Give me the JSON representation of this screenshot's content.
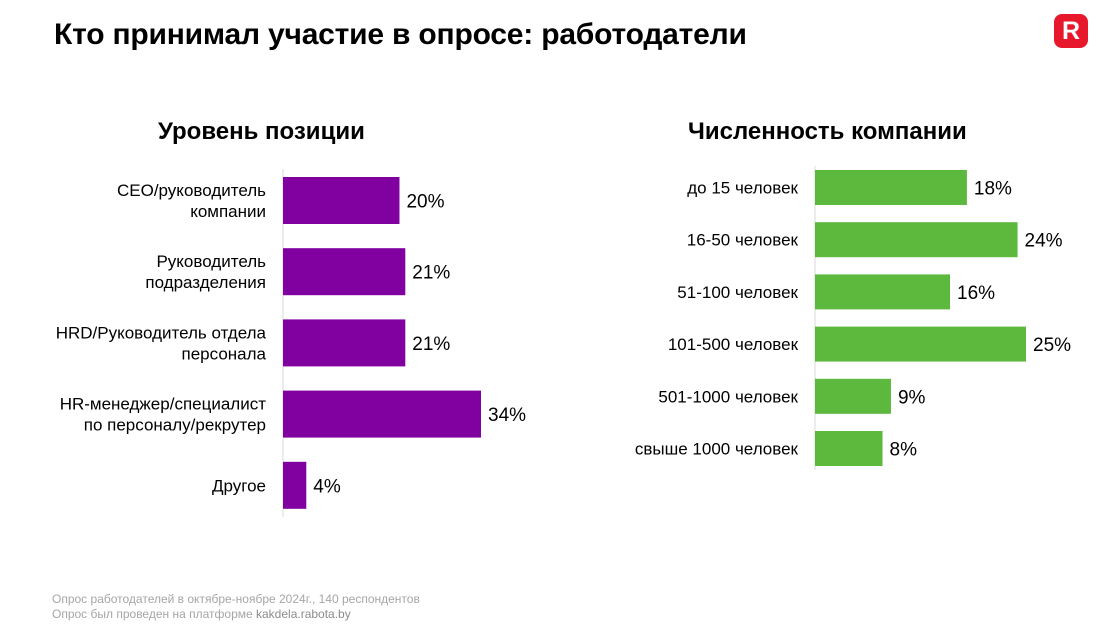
{
  "page": {
    "title": "Кто принимал участие в опросе: работодатели",
    "logo_letter": "R",
    "logo_color": "#e8182c"
  },
  "footer": {
    "line1": "Опрос работодателей в октябре-ноябре 2024г., 140 респондентов",
    "line2_prefix": "Опрос был проведен на платформе ",
    "line2_platform": "kakdela.rabota.by"
  },
  "chart_data": [
    {
      "type": "bar",
      "orientation": "horizontal",
      "title": "Уровень позиции",
      "color": "#8000a0",
      "xlim": [
        0,
        34
      ],
      "grid": false,
      "categories": [
        [
          "CEO/руководитель",
          "компании"
        ],
        [
          "Руководитель",
          "подразделения"
        ],
        [
          "HRD/Руководитель отдела",
          "персонала"
        ],
        [
          "HR-менеджер/специалист",
          "по персоналу/рекрутер"
        ],
        [
          "Другое"
        ]
      ],
      "values": [
        20,
        21,
        21,
        34,
        4
      ],
      "value_labels": [
        "20%",
        "21%",
        "21%",
        "34%",
        "4%"
      ]
    },
    {
      "type": "bar",
      "orientation": "horizontal",
      "title": "Численность компании",
      "color": "#5db83e",
      "xlim": [
        0,
        25
      ],
      "grid": false,
      "categories": [
        [
          "до 15 человек"
        ],
        [
          "16-50 человек"
        ],
        [
          "51-100 человек"
        ],
        [
          "101-500 человек"
        ],
        [
          "501-1000 человек"
        ],
        [
          "свыше 1000 человек"
        ]
      ],
      "values": [
        18,
        24,
        16,
        25,
        9,
        8
      ],
      "value_labels": [
        "18%",
        "24%",
        "16%",
        "25%",
        "9%",
        "8%"
      ]
    }
  ]
}
